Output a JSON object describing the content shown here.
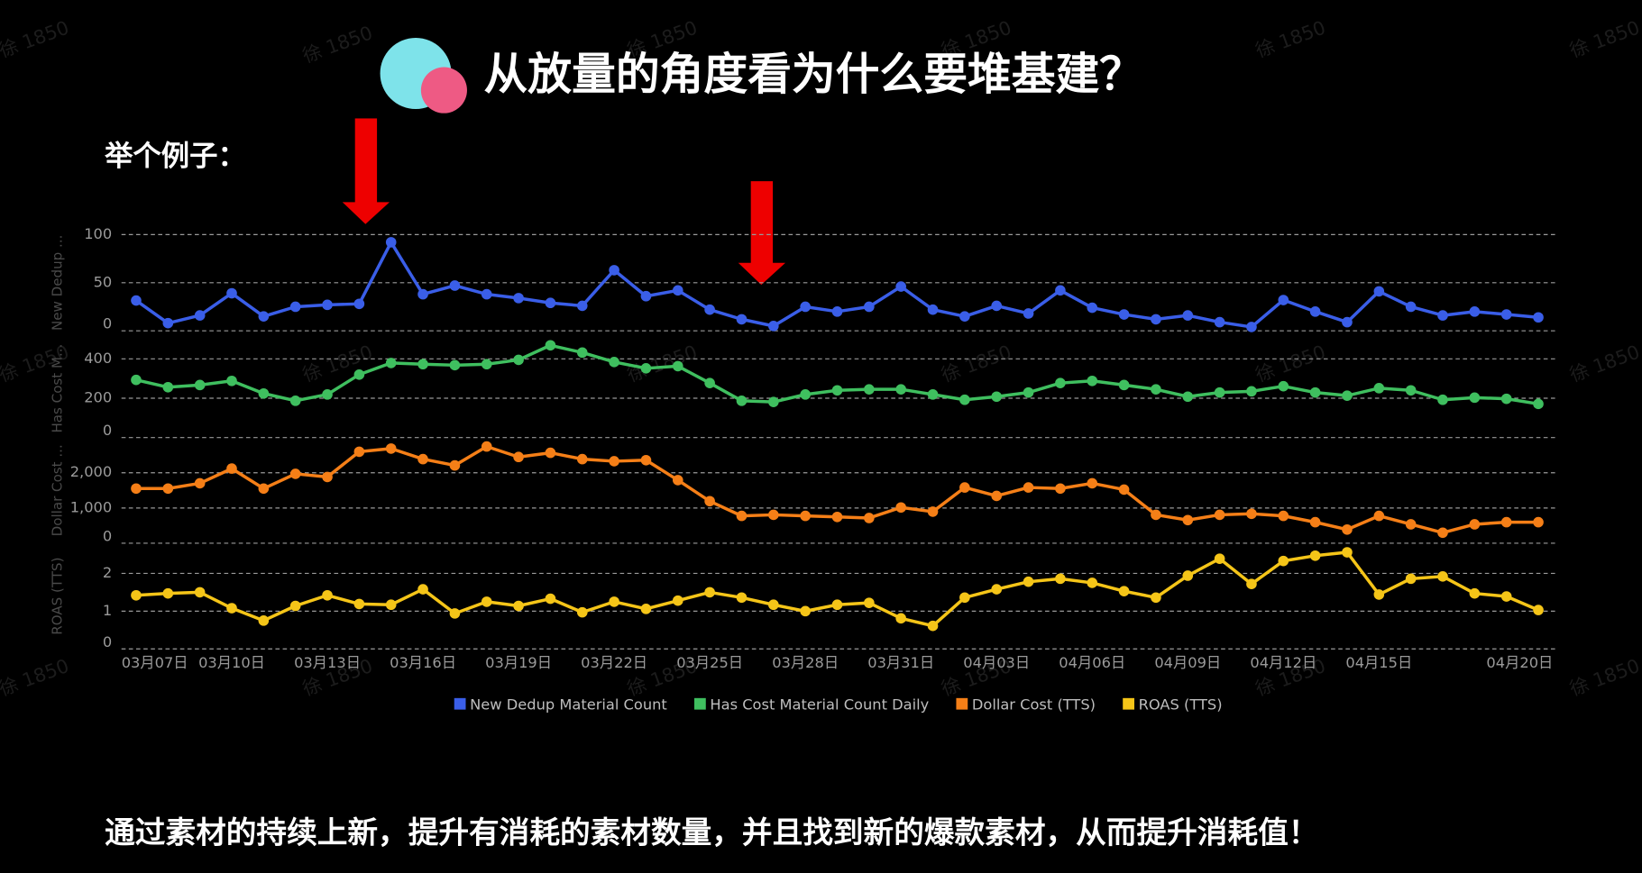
{
  "title": "从放量的角度看为什么要堆基建？",
  "subtitle": "举个例子：",
  "caption": "通过素材的持续上新，提升有消耗的素材数量，并且找到新的爆款素材，从而提升消耗值！",
  "watermark": "徐 1850",
  "chart_data": {
    "type": "line",
    "grid": true,
    "legend": "bottom",
    "categories": [
      "03月07日",
      null,
      null,
      "03月10日",
      null,
      null,
      "03月13日",
      null,
      null,
      "03月16日",
      null,
      null,
      "03月19日",
      null,
      null,
      "03月22日",
      null,
      null,
      "03月25日",
      null,
      null,
      "03月28日",
      null,
      null,
      "03月31日",
      null,
      null,
      "04月03日",
      null,
      null,
      "04月06日",
      null,
      null,
      "04月09日",
      null,
      null,
      "04月12日",
      null,
      null,
      "04月15日",
      null,
      null,
      null,
      null,
      "04月20日"
    ],
    "panels": [
      {
        "ylabel": "New Dedup ...",
        "ylim": [
          0,
          100
        ],
        "yticks": [
          0,
          50,
          100
        ],
        "series": [
          {
            "name": "New Dedup Material Count",
            "color": "#3a5ee8",
            "values": [
              31.5,
              8,
              16,
              39,
              15,
              25,
              27,
              28,
              92,
              38,
              47,
              38,
              34,
              29,
              26,
              63,
              36,
              42,
              22,
              12,
              5,
              25,
              20,
              25,
              46,
              22,
              15,
              26,
              18,
              42,
              24,
              17,
              12,
              16,
              9,
              4,
              32,
              20,
              9,
              41,
              25,
              16,
              20,
              17,
              14
            ]
          }
        ]
      },
      {
        "ylabel": "Has Cost M...",
        "ylim": [
          0,
          500
        ],
        "yticks": [
          0,
          200,
          400
        ],
        "series": [
          {
            "name": "Has Cost Material Count Daily",
            "color": "#3fbf5f",
            "values": [
              293,
              256,
              267,
              288,
              224,
              187,
              219,
              320,
              379,
              373,
              368,
              373,
              395,
              469,
              432,
              384,
              352,
              363,
              277,
              187,
              181,
              219,
              240,
              245,
              245,
              219,
              192,
              208,
              229,
              277,
              288,
              267,
              245,
              208,
              229,
              235,
              261,
              229,
              213,
              251,
              240,
              192,
              203,
              197,
              171
            ]
          }
        ]
      },
      {
        "ylabel": "Dollar Cost ...",
        "ylim": [
          0,
          3000
        ],
        "yticks": [
          0,
          {
            "value": 1000,
            "label": "1,000"
          },
          {
            "value": 2000,
            "label": "2,000"
          }
        ],
        "series": [
          {
            "name": "Dollar Cost (TTS)",
            "color": "#f57f17",
            "values": [
              1552,
              1552,
              1701,
              2119,
              1552,
              1970,
              1881,
              2597,
              2687,
              2388,
              2209,
              2746,
              2448,
              2567,
              2388,
              2328,
              2358,
              1791,
              1194,
              776,
              806,
              776,
              746,
              716,
              1015,
              896,
              1582,
              1343,
              1582,
              1552,
              1701,
              1522,
              806,
              657,
              806,
              836,
              776,
              597,
              388,
              776,
              537,
              299,
              537,
              597,
              597
            ]
          }
        ]
      },
      {
        "ylabel": "ROAS (TTS)",
        "ylim": [
          0,
          2.8
        ],
        "yticks": [
          0,
          1,
          2
        ],
        "series": [
          {
            "name": "ROAS (TTS)",
            "color": "#f5c518",
            "values": [
              1.42,
              1.47,
              1.5,
              1.08,
              0.75,
              1.14,
              1.42,
              1.19,
              1.17,
              1.58,
              0.94,
              1.25,
              1.14,
              1.33,
              0.97,
              1.25,
              1.06,
              1.28,
              1.5,
              1.36,
              1.17,
              1.0,
              1.17,
              1.22,
              0.81,
              0.61,
              1.36,
              1.58,
              1.78,
              1.86,
              1.75,
              1.53,
              1.36,
              1.94,
              2.39,
              1.72,
              2.33,
              2.47,
              2.56,
              1.44,
              1.86,
              1.92,
              1.47,
              1.39,
              1.03
            ]
          }
        ]
      }
    ]
  }
}
